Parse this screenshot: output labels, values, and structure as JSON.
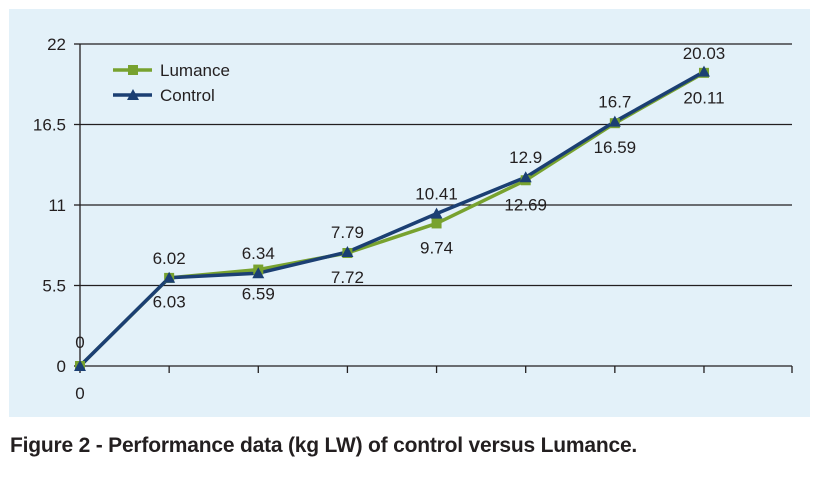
{
  "chart_data": {
    "type": "line",
    "title": "",
    "xlabel": "",
    "ylabel": "",
    "x": [
      0,
      1,
      2,
      3,
      4,
      5,
      6,
      7
    ],
    "ylim": [
      0,
      22
    ],
    "yticks": [
      0,
      5.5,
      11,
      16.5,
      22
    ],
    "ytick_labels": [
      "0",
      "5.5",
      "11",
      "16.5",
      "22"
    ],
    "grid": true,
    "legend_position": "top-left",
    "series": [
      {
        "name": "Lumance",
        "color": "#78a22f",
        "marker": "square",
        "values": [
          0,
          6.02,
          6.59,
          7.72,
          9.74,
          12.69,
          16.59,
          20.03
        ],
        "labels": [
          "0",
          "6.02",
          "6.59",
          "7.72",
          "9.74",
          "12.69",
          "16.59",
          "20.03"
        ]
      },
      {
        "name": "Control",
        "color": "#1b3f73",
        "marker": "triangle",
        "values": [
          0,
          6.03,
          6.34,
          7.79,
          10.41,
          12.9,
          16.7,
          20.11
        ],
        "labels": [
          "0",
          "6.03",
          "6.34",
          "7.79",
          "10.41",
          "12.9",
          "16.7",
          "20.11"
        ]
      }
    ]
  },
  "caption": "Figure 2 - Performance data (kg LW) of control versus Lumance."
}
